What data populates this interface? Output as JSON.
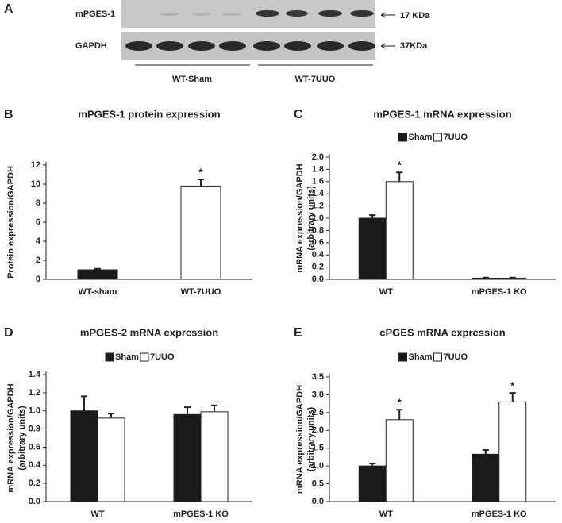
{
  "blot": {
    "panel": "A",
    "rows": [
      "mPGES-1",
      "GAPDH"
    ],
    "sizes": [
      "17 KDa",
      "37KDa"
    ],
    "groups": [
      "WT-Sham",
      "WT-7UUO"
    ]
  },
  "chart_data": [
    {
      "type": "bar",
      "panel": "B",
      "title": "mPGES-1 protein expression",
      "ylabel": [
        "Protein expression/GAPDH"
      ],
      "categories": [
        "WT-sham",
        "WT-7UUO"
      ],
      "series": [
        {
          "colors": [
            "#1a1a1a",
            "#ffffff"
          ],
          "values": [
            1.0,
            9.8
          ],
          "errors": [
            0.1,
            0.7
          ],
          "annotations": [
            null,
            "*"
          ]
        }
      ],
      "ylim": [
        0,
        12
      ],
      "yticks": [
        0,
        2,
        4,
        6,
        8,
        10,
        12
      ],
      "grid": false,
      "legend": false
    },
    {
      "type": "bar",
      "panel": "C",
      "title": "mPGES-1 mRNA expression",
      "ylabel": [
        "mRNA expression/GAPDH",
        "(arbitrary units)"
      ],
      "categories": [
        "WT",
        "mPGES-1 KO"
      ],
      "series": [
        {
          "name": "Sham",
          "color": "#1a1a1a",
          "values": [
            1.0,
            0.02
          ],
          "errors": [
            0.05,
            0.01
          ],
          "annotations": [
            null,
            null
          ]
        },
        {
          "name": "7UUO",
          "color": "#ffffff",
          "values": [
            1.6,
            0.02
          ],
          "errors": [
            0.15,
            0.01
          ],
          "annotations": [
            "*",
            null
          ]
        }
      ],
      "ylim": [
        0,
        2.0
      ],
      "yticks": [
        {
          "value": 0,
          "label": "0.0"
        },
        0.2,
        0.4,
        0.6,
        0.8,
        {
          "value": 1,
          "label": "1.0"
        },
        1.2,
        1.4,
        1.6,
        1.8,
        {
          "value": 2,
          "label": "2.0"
        }
      ],
      "grid": false,
      "legend": "top"
    },
    {
      "type": "bar",
      "panel": "D",
      "title": "mPGES-2 mRNA expression",
      "ylabel": [
        "mRNA expression/GAPDH",
        "(arbitrary units)"
      ],
      "categories": [
        "WT",
        "mPGES-1 KO"
      ],
      "series": [
        {
          "name": "Sham",
          "color": "#1a1a1a",
          "values": [
            1.0,
            0.96
          ],
          "errors": [
            0.16,
            0.08
          ],
          "annotations": [
            null,
            null
          ]
        },
        {
          "name": "7UUO",
          "color": "#ffffff",
          "values": [
            0.92,
            0.99
          ],
          "errors": [
            0.05,
            0.07
          ],
          "annotations": [
            null,
            null
          ]
        }
      ],
      "ylim": [
        0,
        1.4
      ],
      "yticks": [
        {
          "value": 0,
          "label": "0.0"
        },
        0.2,
        0.4,
        0.6,
        0.8,
        {
          "value": 1,
          "label": "1.0"
        },
        1.2,
        1.4
      ],
      "grid": false,
      "legend": "top"
    },
    {
      "type": "bar",
      "panel": "E",
      "title": "cPGES mRNA expression",
      "ylabel": [
        "mRNA expression/GAPDH",
        "(arbitrary units)"
      ],
      "categories": [
        "WT",
        "mPGES-1 KO"
      ],
      "series": [
        {
          "name": "Sham",
          "color": "#1a1a1a",
          "values": [
            1.0,
            1.33
          ],
          "errors": [
            0.07,
            0.12
          ],
          "annotations": [
            null,
            null
          ]
        },
        {
          "name": "7UUO",
          "color": "#ffffff",
          "values": [
            2.3,
            2.8
          ],
          "errors": [
            0.28,
            0.25
          ],
          "annotations": [
            "*",
            "*"
          ]
        }
      ],
      "ylim": [
        0,
        3.5
      ],
      "yticks": [
        {
          "value": 0,
          "label": "0.0"
        },
        0.5,
        {
          "value": 1,
          "label": "1.0"
        },
        1.5,
        {
          "value": 2,
          "label": "2.0"
        },
        2.5,
        {
          "value": 3,
          "label": "3.0"
        },
        3.5
      ],
      "grid": false,
      "legend": "top"
    }
  ]
}
